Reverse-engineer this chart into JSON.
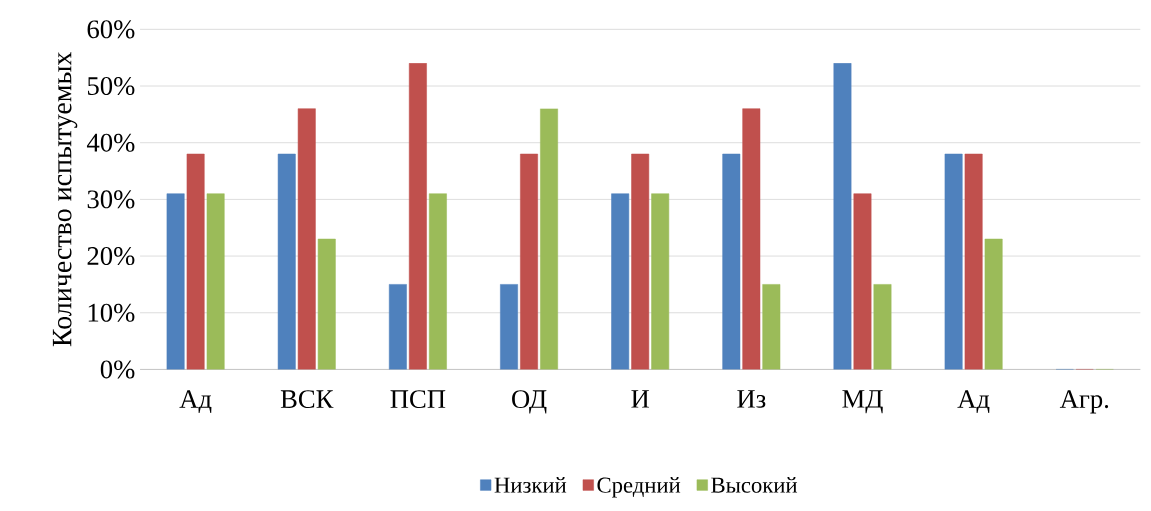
{
  "chart_data": {
    "type": "bar",
    "ylabel": "Количество испытуемых",
    "categories": [
      "Ад",
      "ВСК",
      "ПСП",
      "ОД",
      "И",
      "Из",
      "МД",
      "Ад",
      "Агр."
    ],
    "series": [
      {
        "name": "Низкий",
        "color": "#4f81bd",
        "values": [
          31,
          38,
          15,
          15,
          31,
          38,
          54,
          38,
          0
        ]
      },
      {
        "name": "Средний",
        "color": "#c0504d",
        "values": [
          38,
          46,
          54,
          38,
          38,
          46,
          31,
          38,
          0
        ]
      },
      {
        "name": "Высокий",
        "color": "#9bbb59",
        "values": [
          31,
          23,
          31,
          46,
          31,
          15,
          15,
          23,
          0
        ]
      }
    ],
    "ylim": [
      0,
      60
    ],
    "yticks": [
      {
        "value": 0,
        "label": "0%"
      },
      {
        "value": 10,
        "label": "10%"
      },
      {
        "value": 20,
        "label": "20%"
      },
      {
        "value": 30,
        "label": "30%"
      },
      {
        "value": 40,
        "label": "40%"
      },
      {
        "value": 50,
        "label": "50%"
      },
      {
        "value": 60,
        "label": "60%"
      }
    ],
    "grid": "y",
    "legend": "bottom"
  }
}
